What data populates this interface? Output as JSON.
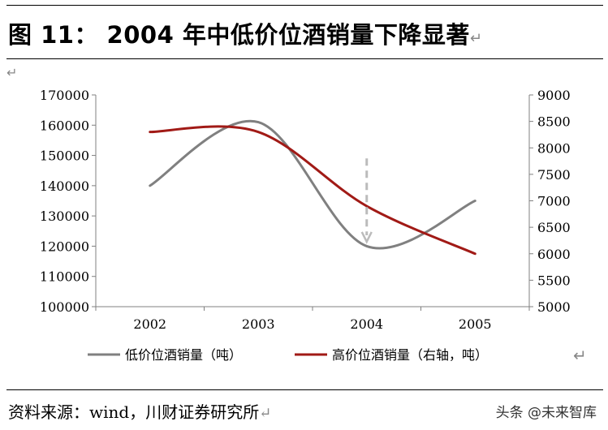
{
  "figure": {
    "title": "图 11： 2004 年中低价位酒销量下降显著",
    "return_mark": "↵",
    "source": "资料来源：wind，川财证券研究所",
    "watermark": "头条 @未来智库"
  },
  "chart_data": {
    "type": "line",
    "categories": [
      "2002",
      "2003",
      "2004",
      "2005"
    ],
    "series": [
      {
        "name": "低价位酒销量（吨）",
        "axis": "left",
        "color": "#808080",
        "values": [
          140000,
          161000,
          120000,
          135000
        ]
      },
      {
        "name": "高价位酒销量（右轴，吨）",
        "axis": "right",
        "color": "#a11a16",
        "values": [
          8300,
          8300,
          6900,
          6000
        ]
      }
    ],
    "y_left": {
      "min": 100000,
      "max": 170000,
      "step": 10000,
      "ticks": [
        "100000",
        "110000",
        "120000",
        "130000",
        "140000",
        "150000",
        "160000",
        "170000"
      ]
    },
    "y_right": {
      "min": 5000,
      "max": 9000,
      "step": 500,
      "ticks": [
        "5000",
        "5500",
        "6000",
        "6500",
        "7000",
        "7500",
        "8000",
        "8500",
        "9000"
      ]
    },
    "annotation": {
      "type": "dashed-down-arrow",
      "x": "2004",
      "from_left": 149000,
      "to_left": 122000,
      "color": "#bbbbbb"
    },
    "legend_position": "bottom",
    "grid": false
  }
}
